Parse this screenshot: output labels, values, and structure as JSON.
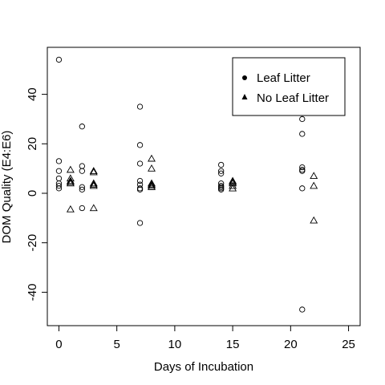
{
  "chart_data": {
    "type": "scatter",
    "xlabel": "Days of Incubation",
    "ylabel": "DOM Quality (E4:E6)",
    "xlim": [
      -1,
      26
    ],
    "ylim": [
      -53.5,
      59
    ],
    "xticks": [
      0,
      5,
      10,
      15,
      20,
      25
    ],
    "xtick_labels": [
      "0",
      "5",
      "10",
      "15",
      "20",
      "25"
    ],
    "yticks": [
      -40,
      -20,
      0,
      20,
      40
    ],
    "ytick_labels": [
      "-40",
      "-20",
      "0",
      "20",
      "40"
    ],
    "legend": {
      "position": "top-right",
      "entries": [
        {
          "label": "Leaf Litter",
          "marker": "filled-circle"
        },
        {
          "label": "No Leaf Litter",
          "marker": "filled-triangle"
        }
      ]
    },
    "series": [
      {
        "name": "Leaf Litter",
        "marker": "open-circle",
        "points": [
          [
            0,
            54
          ],
          [
            0,
            13
          ],
          [
            0,
            9
          ],
          [
            0,
            6
          ],
          [
            0,
            4
          ],
          [
            0,
            3
          ],
          [
            0,
            2
          ],
          [
            2,
            27
          ],
          [
            2,
            11
          ],
          [
            2,
            9
          ],
          [
            2,
            2.5
          ],
          [
            2,
            1.5
          ],
          [
            2,
            -6
          ],
          [
            7,
            35
          ],
          [
            7,
            19.5
          ],
          [
            7,
            12
          ],
          [
            7,
            5
          ],
          [
            7,
            3.5
          ],
          [
            7,
            2
          ],
          [
            7,
            1.5
          ],
          [
            7,
            -12
          ],
          [
            14,
            11.5
          ],
          [
            14,
            9
          ],
          [
            14,
            8
          ],
          [
            14,
            4
          ],
          [
            14,
            3
          ],
          [
            14,
            2.5
          ],
          [
            14,
            2
          ],
          [
            14,
            1.5
          ],
          [
            21,
            30
          ],
          [
            21,
            24
          ],
          [
            21,
            10.5
          ],
          [
            21,
            9.5
          ],
          [
            21,
            9
          ],
          [
            21,
            2
          ],
          [
            21,
            -47
          ]
        ]
      },
      {
        "name": "No Leaf Litter",
        "marker": "open-triangle",
        "points": [
          [
            1,
            9.5
          ],
          [
            1,
            6
          ],
          [
            1,
            5
          ],
          [
            1,
            4.5
          ],
          [
            1,
            4
          ],
          [
            1,
            -6.5
          ],
          [
            3,
            9
          ],
          [
            3,
            8.5
          ],
          [
            3,
            4
          ],
          [
            3,
            3.5
          ],
          [
            3,
            3
          ],
          [
            3,
            -6
          ],
          [
            8,
            14
          ],
          [
            8,
            10
          ],
          [
            8,
            4
          ],
          [
            8,
            3.5
          ],
          [
            8,
            3
          ],
          [
            8,
            2.5
          ],
          [
            15,
            5
          ],
          [
            15,
            4.5
          ],
          [
            15,
            4
          ],
          [
            15,
            3
          ],
          [
            15,
            2
          ],
          [
            22,
            7
          ],
          [
            22,
            3
          ],
          [
            22,
            -11
          ]
        ]
      }
    ]
  }
}
